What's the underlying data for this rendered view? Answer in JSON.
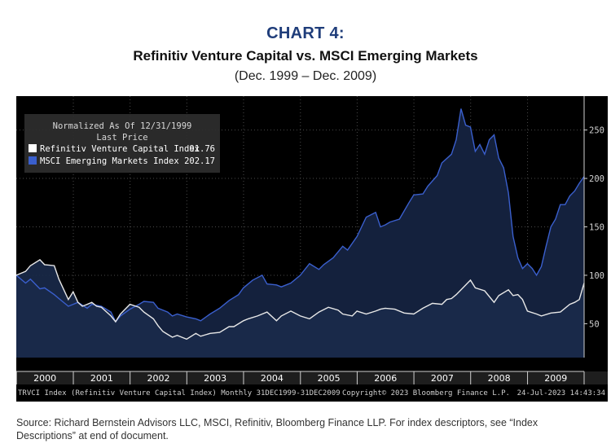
{
  "header": {
    "label": "CHART 4:",
    "title": "Refinitiv Venture Capital vs. MSCI Emerging Markets",
    "subtitle": "(Dec. 1999 – Dec. 2009)"
  },
  "legend": {
    "line1": "Normalized As Of 12/31/1999",
    "line2": "Last Price"
  },
  "footer_bar": {
    "left": "TRVCI Index (Refinitiv Venture Capital Index)  Monthly 31DEC1999-31DEC2009",
    "center": "Copyright© 2023 Bloomberg Finance L.P.",
    "right": "24-Jul-2023  14:43:34"
  },
  "source_note": "Source: Richard Bernstein Advisors LLC, MSCI, Refinitiv, Bloomberg Finance LLP.  For index descriptors, see “Index Descriptions” at end of document.",
  "colors": {
    "background": "#000000",
    "vc_line": "#e8e8e8",
    "em_line": "#3a5fcd",
    "em_fill": "#14213d",
    "axis_text": "#d0d0d0"
  },
  "chart_data": {
    "type": "line",
    "title": "Refinitiv Venture Capital vs. MSCI Emerging Markets",
    "subtitle": "(Dec. 1999 – Dec. 2009)",
    "x_categories": [
      "2000",
      "2001",
      "2002",
      "2003",
      "2004",
      "2005",
      "2006",
      "2007",
      "2008",
      "2009"
    ],
    "x_start": "1999-12-31",
    "x_end": "2009-12-31",
    "frequency": "Monthly",
    "ylim": [
      15,
      285
    ],
    "yticks": [
      50,
      100,
      150,
      200,
      250
    ],
    "y_axis_side": "right",
    "grid": true,
    "legend_position": "top-left",
    "series": [
      {
        "name": "Refinitiv Venture Capital Index",
        "last_price": "91.76",
        "color": "#e8e8e8",
        "x": [
          "1999-12-31",
          "2000-02-29",
          "2000-03-31",
          "2000-05-31",
          "2000-06-30",
          "2000-08-31",
          "2000-09-30",
          "2000-11-30",
          "2000-12-31",
          "2001-01-31",
          "2001-02-28",
          "2001-03-31",
          "2001-04-30",
          "2001-05-31",
          "2001-06-30",
          "2001-08-31",
          "2001-09-30",
          "2001-10-31",
          "2001-12-31",
          "2002-02-28",
          "2002-03-31",
          "2002-05-31",
          "2002-06-30",
          "2002-07-31",
          "2002-08-31",
          "2002-09-30",
          "2002-10-31",
          "2002-12-31",
          "2003-02-28",
          "2003-03-31",
          "2003-05-31",
          "2003-07-31",
          "2003-09-30",
          "2003-10-31",
          "2003-12-31",
          "2004-01-31",
          "2004-03-31",
          "2004-05-31",
          "2004-07-31",
          "2004-08-31",
          "2004-10-31",
          "2004-12-31",
          "2005-02-28",
          "2005-04-30",
          "2005-06-30",
          "2005-08-31",
          "2005-09-30",
          "2005-11-30",
          "2005-12-31",
          "2006-02-28",
          "2006-04-30",
          "2006-05-31",
          "2006-06-30",
          "2006-08-31",
          "2006-10-31",
          "2006-12-31",
          "2007-02-28",
          "2007-04-30",
          "2007-06-30",
          "2007-07-31",
          "2007-08-31",
          "2007-09-30",
          "2007-10-31",
          "2007-12-31",
          "2008-01-31",
          "2008-03-31",
          "2008-05-31",
          "2008-06-30",
          "2008-08-31",
          "2008-09-30",
          "2008-10-31",
          "2008-11-30",
          "2008-12-31",
          "2009-02-28",
          "2009-03-31",
          "2009-05-31",
          "2009-07-31",
          "2009-09-30",
          "2009-10-31",
          "2009-11-30",
          "2009-12-31"
        ],
        "y": [
          100,
          104,
          110,
          116,
          111,
          110,
          96,
          75,
          83,
          72,
          68,
          70,
          72,
          68,
          67,
          58,
          52,
          60,
          70,
          67,
          62,
          55,
          48,
          42,
          39,
          36,
          38,
          34,
          40,
          37,
          40,
          41,
          47,
          47,
          53,
          55,
          58,
          62,
          53,
          58,
          63,
          58,
          55,
          62,
          67,
          64,
          60,
          58,
          63,
          60,
          63,
          65,
          66,
          65,
          61,
          60,
          66,
          71,
          70,
          75,
          76,
          80,
          85,
          95,
          87,
          84,
          72,
          79,
          85,
          79,
          80,
          75,
          63,
          60,
          58,
          61,
          62,
          70,
          72,
          75,
          92
        ]
      },
      {
        "name": "MSCI Emerging Markets Index",
        "last_price": "202.17",
        "color": "#3a5fcd",
        "fill": "#14213d",
        "x": [
          "1999-12-31",
          "2000-02-29",
          "2000-03-31",
          "2000-05-31",
          "2000-06-30",
          "2000-08-31",
          "2000-09-30",
          "2000-11-30",
          "2000-12-31",
          "2001-01-31",
          "2001-03-31",
          "2001-04-30",
          "2001-06-30",
          "2001-08-31",
          "2001-09-30",
          "2001-10-31",
          "2001-12-31",
          "2002-02-28",
          "2002-03-31",
          "2002-05-31",
          "2002-06-30",
          "2002-08-31",
          "2002-09-30",
          "2002-10-31",
          "2002-12-31",
          "2003-02-28",
          "2003-03-31",
          "2003-05-31",
          "2003-07-31",
          "2003-09-30",
          "2003-11-30",
          "2003-12-31",
          "2004-02-29",
          "2004-04-30",
          "2004-05-31",
          "2004-07-31",
          "2004-08-31",
          "2004-10-31",
          "2004-12-31",
          "2005-02-28",
          "2005-04-30",
          "2005-05-31",
          "2005-07-31",
          "2005-09-30",
          "2005-10-31",
          "2005-12-31",
          "2006-02-28",
          "2006-04-30",
          "2006-05-31",
          "2006-06-30",
          "2006-07-31",
          "2006-09-30",
          "2006-11-30",
          "2006-12-31",
          "2007-02-28",
          "2007-03-31",
          "2007-05-31",
          "2007-06-30",
          "2007-08-31",
          "2007-09-30",
          "2007-10-31",
          "2007-11-30",
          "2007-12-31",
          "2008-01-31",
          "2008-02-29",
          "2008-03-31",
          "2008-04-30",
          "2008-05-31",
          "2008-06-30",
          "2008-07-31",
          "2008-08-31",
          "2008-09-30",
          "2008-10-31",
          "2008-11-30",
          "2008-12-31",
          "2009-01-31",
          "2009-02-28",
          "2009-03-31",
          "2009-04-30",
          "2009-05-31",
          "2009-06-30",
          "2009-07-31",
          "2009-08-31",
          "2009-09-30",
          "2009-10-31",
          "2009-11-30",
          "2009-12-31"
        ],
        "y": [
          100,
          92,
          96,
          86,
          87,
          80,
          76,
          68,
          70,
          72,
          66,
          70,
          68,
          62,
          52,
          58,
          65,
          70,
          73,
          72,
          66,
          62,
          58,
          60,
          57,
          55,
          53,
          60,
          66,
          74,
          80,
          87,
          95,
          100,
          91,
          90,
          88,
          92,
          100,
          112,
          106,
          111,
          118,
          130,
          126,
          140,
          160,
          165,
          150,
          152,
          155,
          158,
          175,
          183,
          184,
          192,
          203,
          216,
          225,
          240,
          272,
          255,
          253,
          228,
          235,
          225,
          240,
          245,
          221,
          211,
          185,
          140,
          118,
          107,
          112,
          107,
          100,
          109,
          130,
          150,
          158,
          173,
          173,
          182,
          187,
          195,
          202
        ]
      }
    ]
  }
}
